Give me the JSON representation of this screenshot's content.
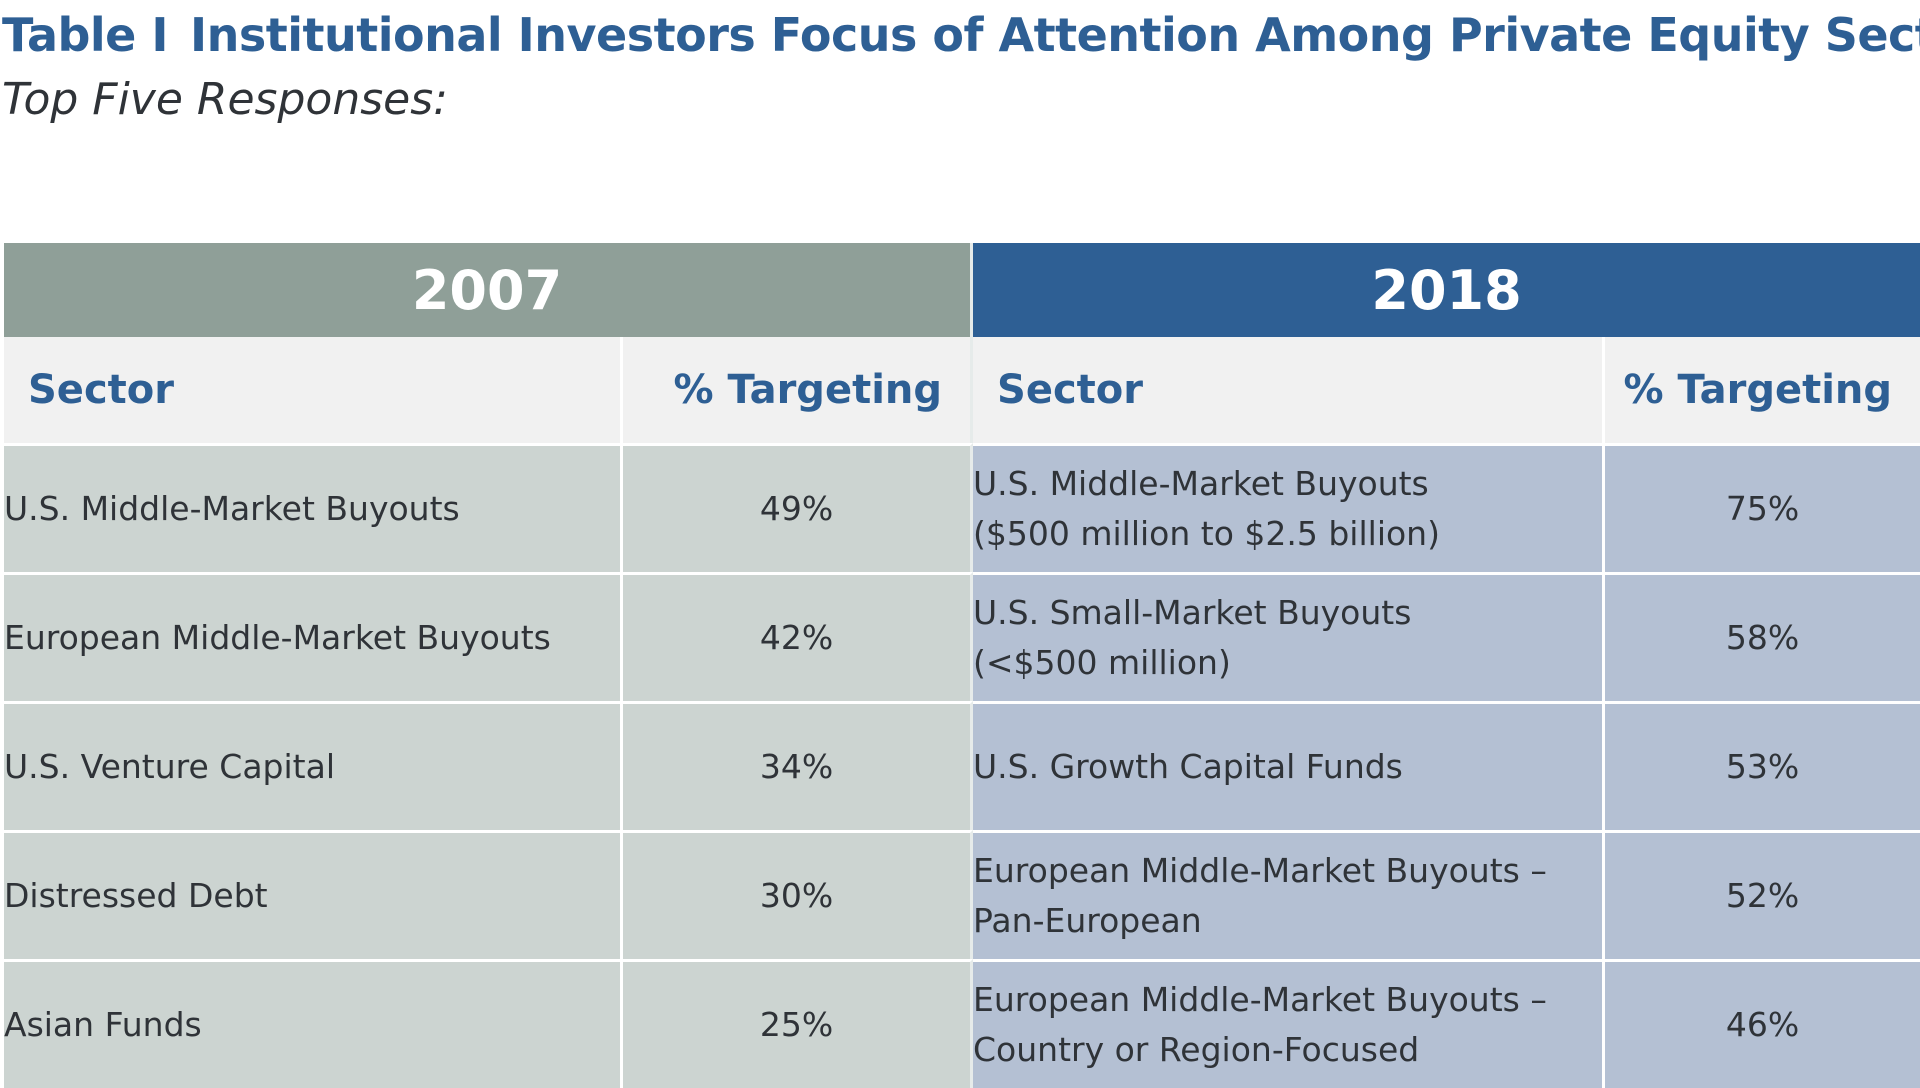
{
  "title": {
    "label": "Table I",
    "text": "Institutional Investors Focus of Attention Among Private Equity Sectors"
  },
  "subtitle": "Top Five Responses:",
  "years": [
    "2007",
    "2018"
  ],
  "columns": {
    "sector": "Sector",
    "pct": "% Targeting"
  },
  "rows": [
    {
      "sector_2007": "U.S. Middle-Market Buyouts",
      "pct_2007": "49%",
      "sector_2018_line1": "U.S. Middle-Market Buyouts",
      "sector_2018_line2": "($500 million to $2.5 billion)",
      "pct_2018": "75%"
    },
    {
      "sector_2007": "European Middle-Market Buyouts",
      "pct_2007": "42%",
      "sector_2018_line1": "U.S. Small-Market Buyouts",
      "sector_2018_line2": "(<$500 million)",
      "pct_2018": "58%"
    },
    {
      "sector_2007": "U.S. Venture Capital",
      "pct_2007": "34%",
      "sector_2018_line1": "U.S. Growth Capital Funds",
      "sector_2018_line2": "",
      "pct_2018": "53%"
    },
    {
      "sector_2007": "Distressed Debt",
      "pct_2007": "30%",
      "sector_2018_line1": "European Middle-Market Buyouts –",
      "sector_2018_line2": "Pan-European",
      "pct_2018": "52%"
    },
    {
      "sector_2007": "Asian Funds",
      "pct_2007": "25%",
      "sector_2018_line1": "European Middle-Market Buyouts –",
      "sector_2018_line2": "Country or Region-Focused",
      "pct_2018": "46%"
    }
  ]
}
